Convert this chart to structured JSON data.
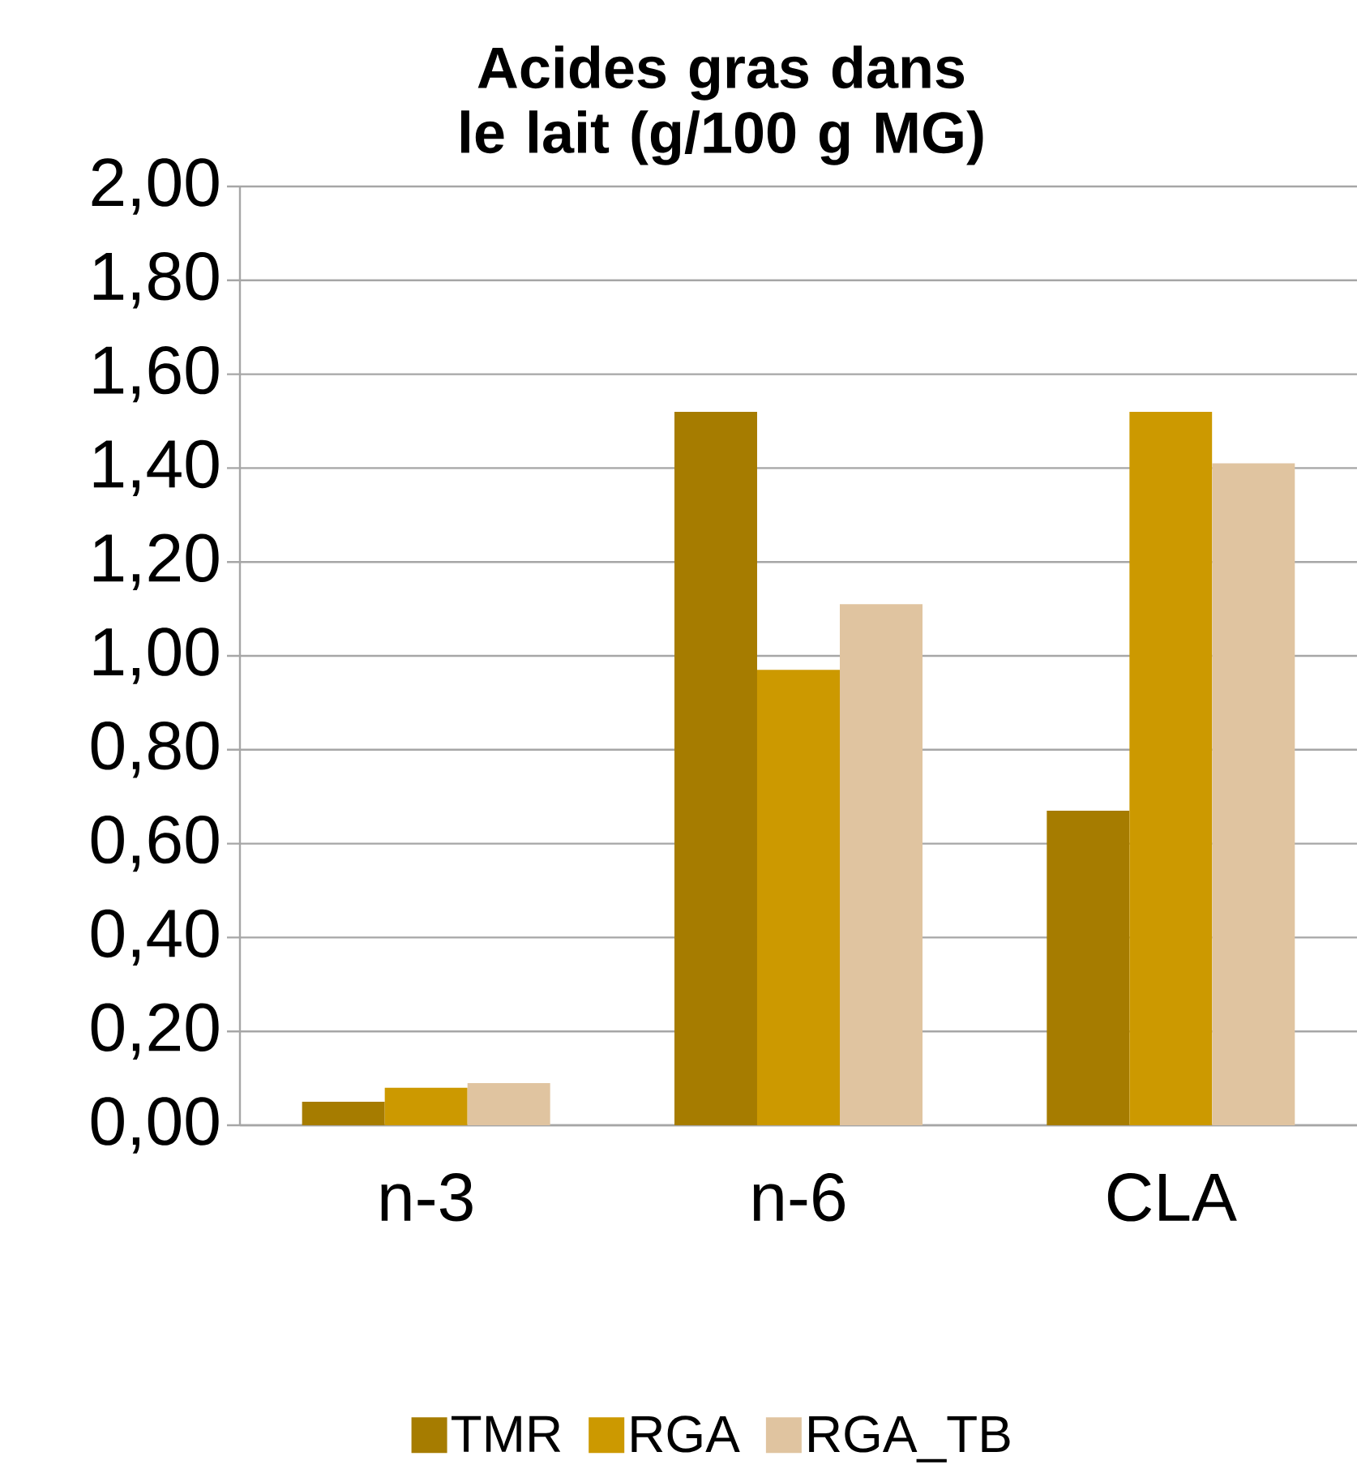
{
  "chart_data": {
    "type": "bar",
    "title": "Acides gras dans le lait (g/100 g MG)",
    "categories": [
      "n-3",
      "n-6",
      "CLA"
    ],
    "series": [
      {
        "name": "TMR",
        "color": "#a67c00",
        "values": [
          0.05,
          1.52,
          0.67
        ]
      },
      {
        "name": "RGA",
        "color": "#cc9900",
        "values": [
          0.08,
          0.97,
          1.52
        ]
      },
      {
        "name": "RGA_TB",
        "color": "#e0c4a0",
        "values": [
          0.09,
          1.11,
          1.41
        ]
      }
    ],
    "ylim": [
      0,
      2
    ],
    "yticks": [
      {
        "value": 0,
        "label": "0,00"
      },
      {
        "value": 0.2,
        "label": "0,20"
      },
      {
        "value": 0.4,
        "label": "0,40"
      },
      {
        "value": 0.6,
        "label": "0,60"
      },
      {
        "value": 0.8,
        "label": "0,80"
      },
      {
        "value": 1,
        "label": "1,00"
      },
      {
        "value": 1.2,
        "label": "1,20"
      },
      {
        "value": 1.4,
        "label": "1,40"
      },
      {
        "value": 1.6,
        "label": "1,60"
      },
      {
        "value": 1.8,
        "label": "1,80"
      },
      {
        "value": 2,
        "label": "2,00"
      }
    ],
    "grid": "y",
    "legend": "bottom"
  }
}
